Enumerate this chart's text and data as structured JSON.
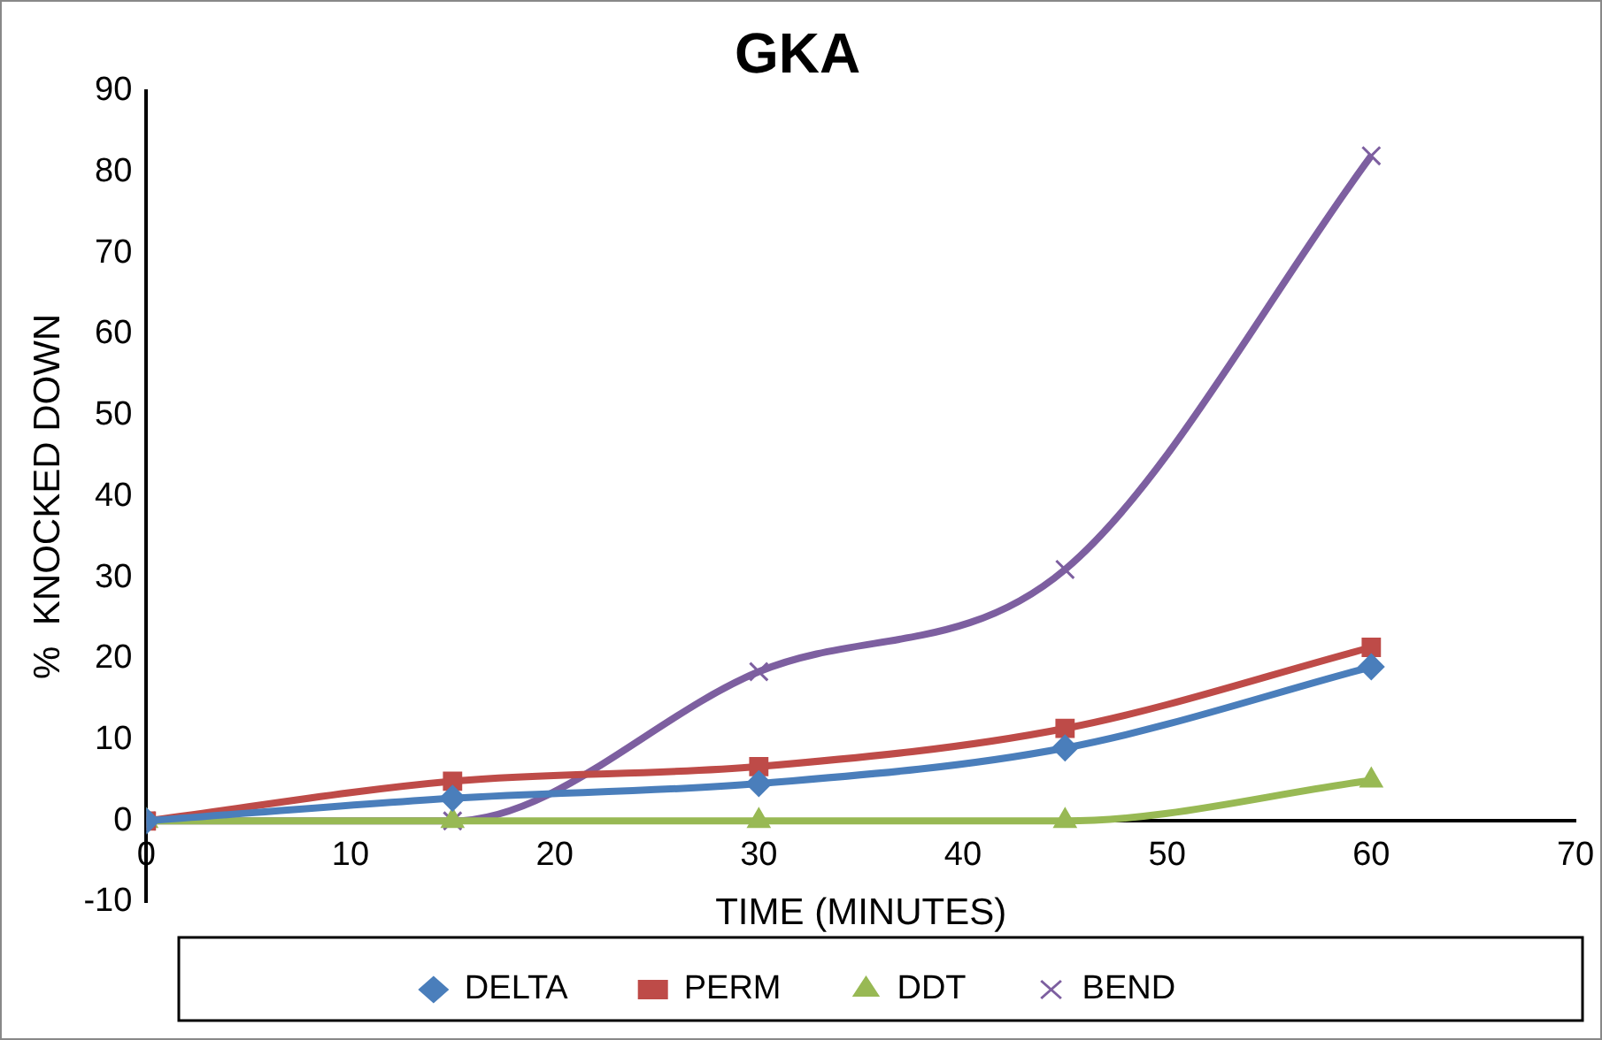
{
  "chart_data": {
    "type": "line",
    "title": "GKA",
    "xlabel": "TIME (MINUTES)",
    "ylabel": "%  KNOCKED DOWN",
    "x": [
      0,
      15,
      30,
      45,
      60
    ],
    "series": [
      {
        "name": "DELTA",
        "color": "#4a7ebb",
        "marker": "diamond",
        "values": [
          0,
          2.8,
          4.6,
          9,
          19
        ]
      },
      {
        "name": "PERM",
        "color": "#be4b48",
        "marker": "square",
        "values": [
          0,
          4.9,
          6.7,
          11.4,
          21.4
        ]
      },
      {
        "name": "DDT",
        "color": "#98b954",
        "marker": "triangle",
        "values": [
          0,
          0,
          0,
          0,
          5
        ]
      },
      {
        "name": "BEND",
        "color": "#7d5fa0",
        "marker": "cross",
        "values": [
          0,
          0,
          18.4,
          31,
          82
        ]
      }
    ],
    "xlim": [
      0,
      70
    ],
    "xticks": [
      0,
      10,
      20,
      30,
      40,
      50,
      60,
      70
    ],
    "ylim": [
      -10,
      90
    ],
    "yticks": [
      -10,
      0,
      10,
      20,
      30,
      40,
      50,
      60,
      70,
      80,
      90
    ],
    "grid": false,
    "legend": "bottom"
  }
}
